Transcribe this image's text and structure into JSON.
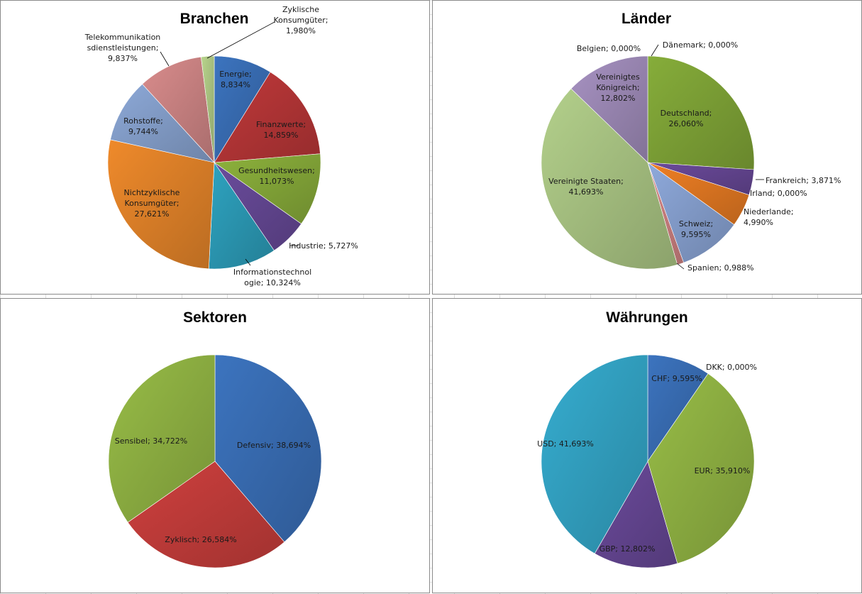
{
  "chart_data": [
    {
      "id": "branchen",
      "type": "pie",
      "title": "Branchen",
      "slices": [
        {
          "label": "Energie; 8,834%",
          "value": 8.834,
          "color": "#3c74bf"
        },
        {
          "label": "Finanzwerte; 14,859%",
          "value": 14.859,
          "color": "#c0393a"
        },
        {
          "label": "Gesundheitswesen; 11,073%",
          "value": 11.073,
          "color": "#8db23c"
        },
        {
          "label": "Industrie; 5,727%",
          "value": 5.727,
          "color": "#6a4c9c"
        },
        {
          "label": "Informationstechnologie; 10,324%",
          "value": 10.324,
          "color": "#2ea3c0"
        },
        {
          "label": "Nichtzyklische Konsumgüter; 27,621%",
          "value": 27.621,
          "color": "#ef8a2b"
        },
        {
          "label": "Rohstoffe; 9,744%",
          "value": 9.744,
          "color": "#8da9d8"
        },
        {
          "label": "Telekommunikationsdienstleistungen; 9,837%",
          "value": 9.837,
          "color": "#d98c8c"
        },
        {
          "label": "Zyklische Konsumgüter; 1,980%",
          "value": 1.98,
          "color": "#b8d48c"
        }
      ]
    },
    {
      "id": "laender",
      "type": "pie",
      "title": "Länder",
      "slices": [
        {
          "label": "Deutschland; 26,060%",
          "value": 26.06,
          "color": "#86ad3a"
        },
        {
          "label": "Frankreich; 3,871%",
          "value": 3.871,
          "color": "#6b4a9b"
        },
        {
          "label": "Irland; 0,000%",
          "value": 0.0,
          "color": "#2ea3c0"
        },
        {
          "label": "Niederlande; 4,990%",
          "value": 4.99,
          "color": "#ef7f24"
        },
        {
          "label": "Schweiz; 9,595%",
          "value": 9.595,
          "color": "#8ea9db"
        },
        {
          "label": "Spanien; 0,988%",
          "value": 0.988,
          "color": "#d98888"
        },
        {
          "label": "Vereinigte Staaten; 41,693%",
          "value": 41.693,
          "color": "#b3d08b"
        },
        {
          "label": "Vereinigtes Königreich; 12,802%",
          "value": 12.802,
          "color": "#a792c2"
        },
        {
          "label": "Belgien; 0,000%",
          "value": 0.0,
          "color": "#4bb3cf"
        },
        {
          "label": "Dänemark; 0,000%",
          "value": 0.0,
          "color": "#f3a559"
        }
      ]
    },
    {
      "id": "sektoren",
      "type": "pie",
      "title": "Sektoren",
      "slices": [
        {
          "label": "Defensiv; 38,694%",
          "value": 38.694,
          "color": "#3c74bf"
        },
        {
          "label": "Zyklisch; 26,584%",
          "value": 26.584,
          "color": "#cf403e"
        },
        {
          "label": "Sensibel; 34,722%",
          "value": 34.722,
          "color": "#98bd47"
        }
      ]
    },
    {
      "id": "waehrungen",
      "type": "pie",
      "title": "Währungen",
      "slices": [
        {
          "label": "CHF; 9,595%",
          "value": 9.595,
          "color": "#3c74bf"
        },
        {
          "label": "DKK; 0,000%",
          "value": 0.0,
          "color": "#cf403e"
        },
        {
          "label": "EUR; 35,910%",
          "value": 35.91,
          "color": "#98bd47"
        },
        {
          "label": "GBP; 12,802%",
          "value": 12.802,
          "color": "#6b4a9b"
        },
        {
          "label": "USD; 41,693%",
          "value": 41.693,
          "color": "#36add0"
        }
      ]
    }
  ]
}
